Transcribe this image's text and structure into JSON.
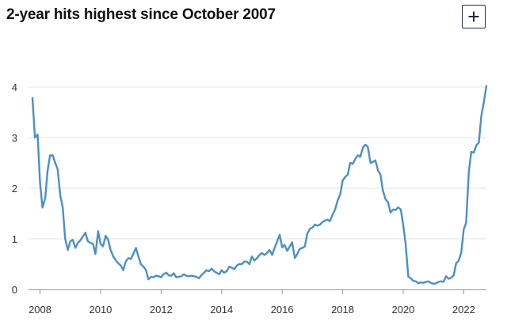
{
  "header": {
    "title": "2-year hits highest since October 2007",
    "expand_icon": "plus-icon"
  },
  "colors": {
    "line": "#4a90c8",
    "grid": "#e3e3e3",
    "axis": "#999999",
    "text": "#333333"
  },
  "chart_data": {
    "type": "line",
    "title": "2-year hits highest since October 2007",
    "xlabel": "",
    "ylabel": "",
    "xlim": [
      2007.75,
      2022.75
    ],
    "ylim": [
      0,
      4
    ],
    "grid": true,
    "x_ticks": [
      2008,
      2010,
      2012,
      2014,
      2016,
      2018,
      2020,
      2022
    ],
    "y_ticks": [
      0,
      1,
      2,
      3,
      4
    ],
    "series": [
      {
        "points": [
          [
            2007.75,
            3.78
          ],
          [
            2007.83,
            3.0
          ],
          [
            2007.92,
            3.06
          ],
          [
            2008.0,
            2.1
          ],
          [
            2008.08,
            1.62
          ],
          [
            2008.17,
            1.8
          ],
          [
            2008.25,
            2.35
          ],
          [
            2008.33,
            2.65
          ],
          [
            2008.42,
            2.65
          ],
          [
            2008.5,
            2.5
          ],
          [
            2008.58,
            2.38
          ],
          [
            2008.67,
            1.85
          ],
          [
            2008.75,
            1.62
          ],
          [
            2008.83,
            1.0
          ],
          [
            2008.92,
            0.78
          ],
          [
            2009.0,
            0.95
          ],
          [
            2009.08,
            0.98
          ],
          [
            2009.17,
            0.82
          ],
          [
            2009.25,
            0.92
          ],
          [
            2009.33,
            0.97
          ],
          [
            2009.42,
            1.05
          ],
          [
            2009.5,
            1.12
          ],
          [
            2009.58,
            0.95
          ],
          [
            2009.67,
            0.92
          ],
          [
            2009.75,
            0.9
          ],
          [
            2009.83,
            0.7
          ],
          [
            2009.92,
            1.15
          ],
          [
            2010.0,
            0.9
          ],
          [
            2010.08,
            0.85
          ],
          [
            2010.17,
            1.06
          ],
          [
            2010.25,
            0.98
          ],
          [
            2010.33,
            0.78
          ],
          [
            2010.42,
            0.65
          ],
          [
            2010.5,
            0.58
          ],
          [
            2010.58,
            0.52
          ],
          [
            2010.67,
            0.47
          ],
          [
            2010.75,
            0.38
          ],
          [
            2010.83,
            0.55
          ],
          [
            2010.92,
            0.62
          ],
          [
            2011.0,
            0.6
          ],
          [
            2011.08,
            0.7
          ],
          [
            2011.17,
            0.82
          ],
          [
            2011.25,
            0.65
          ],
          [
            2011.33,
            0.5
          ],
          [
            2011.42,
            0.45
          ],
          [
            2011.5,
            0.38
          ],
          [
            2011.58,
            0.2
          ],
          [
            2011.67,
            0.25
          ],
          [
            2011.75,
            0.24
          ],
          [
            2011.83,
            0.27
          ],
          [
            2011.92,
            0.26
          ],
          [
            2012.0,
            0.24
          ],
          [
            2012.08,
            0.3
          ],
          [
            2012.17,
            0.33
          ],
          [
            2012.25,
            0.28
          ],
          [
            2012.33,
            0.27
          ],
          [
            2012.42,
            0.32
          ],
          [
            2012.5,
            0.24
          ],
          [
            2012.58,
            0.25
          ],
          [
            2012.67,
            0.26
          ],
          [
            2012.75,
            0.3
          ],
          [
            2012.83,
            0.27
          ],
          [
            2012.92,
            0.26
          ],
          [
            2013.0,
            0.27
          ],
          [
            2013.08,
            0.26
          ],
          [
            2013.17,
            0.25
          ],
          [
            2013.25,
            0.22
          ],
          [
            2013.33,
            0.28
          ],
          [
            2013.42,
            0.33
          ],
          [
            2013.5,
            0.38
          ],
          [
            2013.58,
            0.36
          ],
          [
            2013.67,
            0.41
          ],
          [
            2013.75,
            0.36
          ],
          [
            2013.83,
            0.33
          ],
          [
            2013.92,
            0.3
          ],
          [
            2014.0,
            0.38
          ],
          [
            2014.08,
            0.33
          ],
          [
            2014.17,
            0.36
          ],
          [
            2014.25,
            0.45
          ],
          [
            2014.33,
            0.43
          ],
          [
            2014.42,
            0.4
          ],
          [
            2014.5,
            0.47
          ],
          [
            2014.58,
            0.5
          ],
          [
            2014.67,
            0.5
          ],
          [
            2014.75,
            0.55
          ],
          [
            2014.83,
            0.55
          ],
          [
            2014.92,
            0.5
          ],
          [
            2015.0,
            0.65
          ],
          [
            2015.08,
            0.57
          ],
          [
            2015.17,
            0.62
          ],
          [
            2015.25,
            0.68
          ],
          [
            2015.33,
            0.72
          ],
          [
            2015.42,
            0.68
          ],
          [
            2015.5,
            0.72
          ],
          [
            2015.58,
            0.78
          ],
          [
            2015.67,
            0.68
          ],
          [
            2015.75,
            0.82
          ],
          [
            2015.83,
            0.94
          ],
          [
            2015.92,
            1.08
          ],
          [
            2016.0,
            0.83
          ],
          [
            2016.08,
            0.88
          ],
          [
            2016.17,
            0.76
          ],
          [
            2016.25,
            0.85
          ],
          [
            2016.33,
            0.93
          ],
          [
            2016.42,
            0.62
          ],
          [
            2016.5,
            0.7
          ],
          [
            2016.58,
            0.8
          ],
          [
            2016.67,
            0.82
          ],
          [
            2016.75,
            0.85
          ],
          [
            2016.83,
            1.1
          ],
          [
            2016.92,
            1.2
          ],
          [
            2017.0,
            1.22
          ],
          [
            2017.08,
            1.28
          ],
          [
            2017.17,
            1.26
          ],
          [
            2017.25,
            1.28
          ],
          [
            2017.33,
            1.33
          ],
          [
            2017.42,
            1.36
          ],
          [
            2017.5,
            1.38
          ],
          [
            2017.58,
            1.35
          ],
          [
            2017.67,
            1.48
          ],
          [
            2017.75,
            1.58
          ],
          [
            2017.83,
            1.75
          ],
          [
            2017.92,
            1.88
          ],
          [
            2018.0,
            2.15
          ],
          [
            2018.08,
            2.22
          ],
          [
            2018.17,
            2.27
          ],
          [
            2018.25,
            2.5
          ],
          [
            2018.33,
            2.48
          ],
          [
            2018.42,
            2.58
          ],
          [
            2018.5,
            2.65
          ],
          [
            2018.58,
            2.62
          ],
          [
            2018.67,
            2.8
          ],
          [
            2018.75,
            2.86
          ],
          [
            2018.83,
            2.82
          ],
          [
            2018.92,
            2.5
          ],
          [
            2019.0,
            2.52
          ],
          [
            2019.08,
            2.55
          ],
          [
            2019.17,
            2.35
          ],
          [
            2019.25,
            2.27
          ],
          [
            2019.33,
            1.95
          ],
          [
            2019.42,
            1.78
          ],
          [
            2019.5,
            1.72
          ],
          [
            2019.58,
            1.52
          ],
          [
            2019.67,
            1.58
          ],
          [
            2019.75,
            1.57
          ],
          [
            2019.83,
            1.62
          ],
          [
            2019.92,
            1.58
          ],
          [
            2020.0,
            1.28
          ],
          [
            2020.08,
            0.9
          ],
          [
            2020.17,
            0.25
          ],
          [
            2020.25,
            0.22
          ],
          [
            2020.33,
            0.17
          ],
          [
            2020.42,
            0.16
          ],
          [
            2020.5,
            0.12
          ],
          [
            2020.58,
            0.14
          ],
          [
            2020.67,
            0.13
          ],
          [
            2020.75,
            0.15
          ],
          [
            2020.83,
            0.16
          ],
          [
            2020.92,
            0.13
          ],
          [
            2021.0,
            0.11
          ],
          [
            2021.08,
            0.12
          ],
          [
            2021.17,
            0.15
          ],
          [
            2021.25,
            0.16
          ],
          [
            2021.33,
            0.15
          ],
          [
            2021.42,
            0.26
          ],
          [
            2021.5,
            0.21
          ],
          [
            2021.58,
            0.23
          ],
          [
            2021.67,
            0.28
          ],
          [
            2021.75,
            0.52
          ],
          [
            2021.83,
            0.56
          ],
          [
            2021.92,
            0.73
          ],
          [
            2022.0,
            1.18
          ],
          [
            2022.08,
            1.32
          ],
          [
            2022.17,
            2.33
          ],
          [
            2022.25,
            2.72
          ],
          [
            2022.33,
            2.7
          ],
          [
            2022.42,
            2.85
          ],
          [
            2022.5,
            2.9
          ],
          [
            2022.58,
            3.42
          ],
          [
            2022.67,
            3.72
          ],
          [
            2022.75,
            4.02
          ]
        ]
      }
    ]
  }
}
